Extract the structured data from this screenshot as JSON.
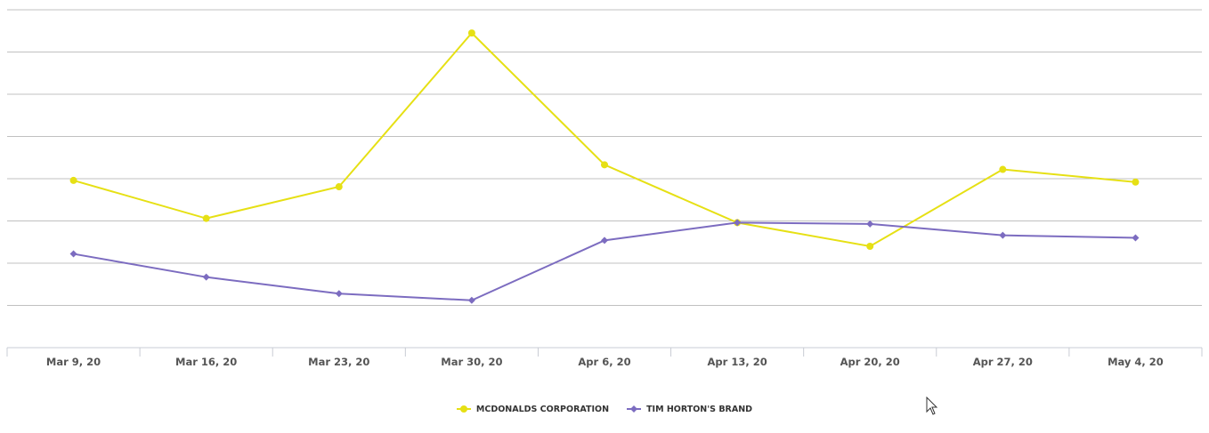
{
  "chart_data": {
    "type": "line",
    "title": "",
    "xlabel": "",
    "ylabel": "",
    "categories": [
      "Mar 9, 20",
      "Mar 16, 20",
      "Mar 23, 20",
      "Mar 30, 20",
      "Apr 6, 20",
      "Apr 13, 20",
      "Apr 20, 20",
      "Apr 27, 20",
      "May 4, 20"
    ],
    "ylim": [
      0,
      8
    ],
    "gridlines": 8,
    "grid": true,
    "legend_position": "bottom-center",
    "series": [
      {
        "name": "MCDONALDS CORPORATION",
        "marker": "circle",
        "color": "#e6e014",
        "values": [
          3.96,
          3.06,
          3.81,
          7.45,
          4.33,
          2.96,
          2.4,
          4.22,
          3.92
        ]
      },
      {
        "name": "TIM HORTON'S BRAND",
        "marker": "diamond",
        "color": "#7c6cc0",
        "values": [
          2.22,
          1.67,
          1.28,
          1.12,
          2.54,
          2.96,
          2.93,
          2.66,
          2.6
        ]
      }
    ]
  }
}
